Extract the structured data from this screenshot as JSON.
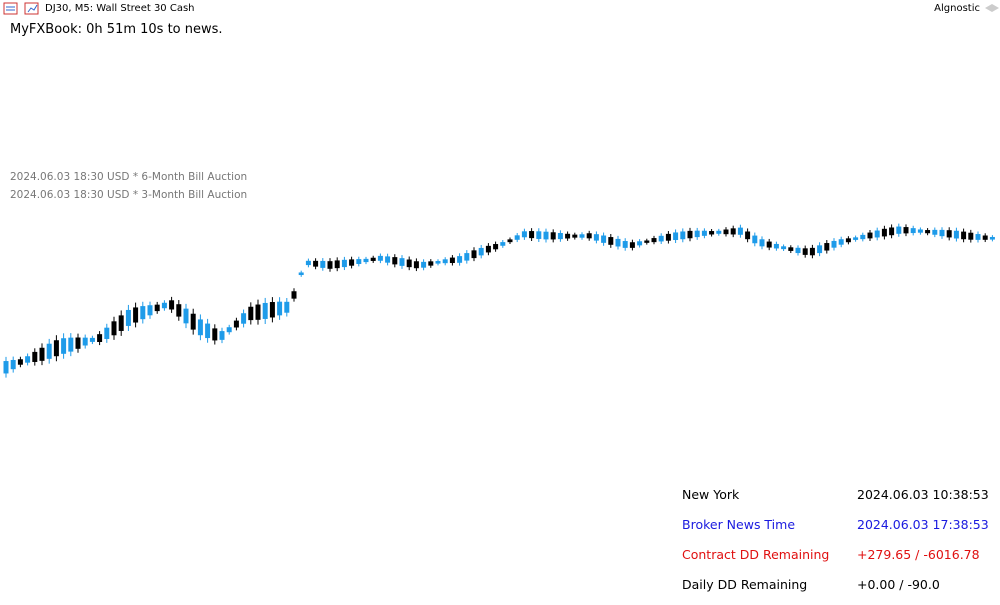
{
  "header": {
    "symbol": "DJ30, M5: Wall Street 30 Cash",
    "account": "Algnostic"
  },
  "countdown": "MyFXBook: 0h 51m 10s to news.",
  "news": [
    "2024.06.03 18:30 USD * 6-Month Bill Auction",
    "2024.06.03 18:30 USD * 3-Month Bill Auction"
  ],
  "info": {
    "rows": [
      [
        "New York",
        "2024.06.03 10:38:53"
      ],
      [
        "Broker News Time",
        "2024.06.03 17:38:53"
      ],
      [
        "Contract DD Remaining",
        "+279.65 / -6016.78"
      ],
      [
        "Daily DD Remaining",
        "+0.00 / -90.0"
      ]
    ]
  }
}
